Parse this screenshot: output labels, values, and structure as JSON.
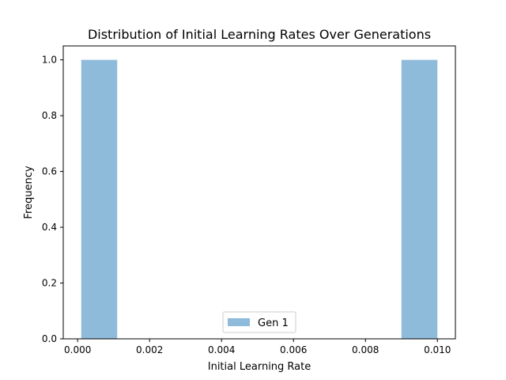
{
  "chart_data": {
    "type": "bar",
    "subtype": "histogram",
    "title": "Distribution of Initial Learning Rates Over Generations",
    "xlabel": "Initial Learning Rate",
    "ylabel": "Frequency",
    "xlim": [
      -0.0004,
      0.0105
    ],
    "ylim": [
      0.0,
      1.05
    ],
    "grid": false,
    "legend_position": "lower center",
    "x_ticks": [
      {
        "value": 0.0,
        "label": "0.000"
      },
      {
        "value": 0.002,
        "label": "0.002"
      },
      {
        "value": 0.004,
        "label": "0.004"
      },
      {
        "value": 0.006,
        "label": "0.006"
      },
      {
        "value": 0.008,
        "label": "0.008"
      },
      {
        "value": 0.01,
        "label": "0.010"
      }
    ],
    "y_ticks": [
      {
        "value": 0.0,
        "label": "0.0"
      },
      {
        "value": 0.2,
        "label": "0.2"
      },
      {
        "value": 0.4,
        "label": "0.4"
      },
      {
        "value": 0.6,
        "label": "0.6"
      },
      {
        "value": 0.8,
        "label": "0.8"
      },
      {
        "value": 1.0,
        "label": "1.0"
      }
    ],
    "series": [
      {
        "name": "Gen 1",
        "color": "#8fbbdb",
        "bins": [
          {
            "x0": 0.0001,
            "x1": 0.0011,
            "value": 1
          },
          {
            "x0": 0.009,
            "x1": 0.01,
            "value": 1
          }
        ]
      }
    ]
  }
}
